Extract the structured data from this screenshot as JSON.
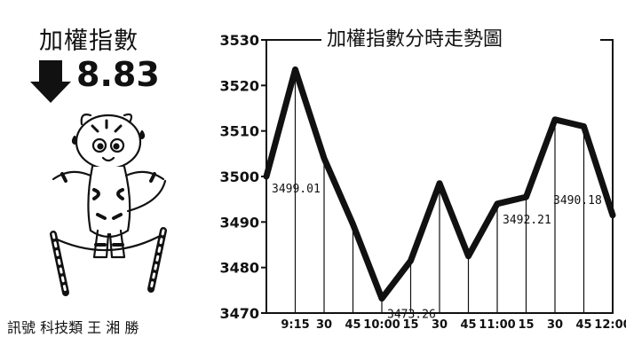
{
  "panel": {
    "title": "加權指數",
    "change": "8.83",
    "direction": "down",
    "footnote": "訊號 科技類 王 湘 勝"
  },
  "chart_data": {
    "type": "line",
    "title": "加權指數分時走勢圖",
    "xlabel": "",
    "ylabel": "",
    "ylim": [
      3470,
      3530
    ],
    "yticks": [
      3470,
      3480,
      3490,
      3500,
      3510,
      3520,
      3530
    ],
    "xticks": [
      "9:15",
      "30",
      "45",
      "10:00",
      "15",
      "30",
      "45",
      "11:00",
      "15",
      "30",
      "45",
      "12:00"
    ],
    "x": [
      "9:00",
      "9:15",
      "9:30",
      "9:45",
      "10:00",
      "10:15",
      "10:30",
      "10:45",
      "11:00",
      "11:15",
      "11:30",
      "11:45",
      "12:00"
    ],
    "values": [
      3500,
      3523.5,
      3504,
      3489.5,
      3473.2,
      3481.5,
      3498.5,
      3482.5,
      3494,
      3495.5,
      3512.5,
      3511,
      3491.5
    ],
    "annotations": [
      {
        "x": "9:00",
        "text": "3499.01"
      },
      {
        "x": "10:00",
        "text": "3473.26"
      },
      {
        "x": "11:00",
        "text": "3492.21"
      },
      {
        "x": "11:30",
        "text": "3490.18"
      }
    ],
    "grid": "vertical",
    "color": "#111111"
  }
}
